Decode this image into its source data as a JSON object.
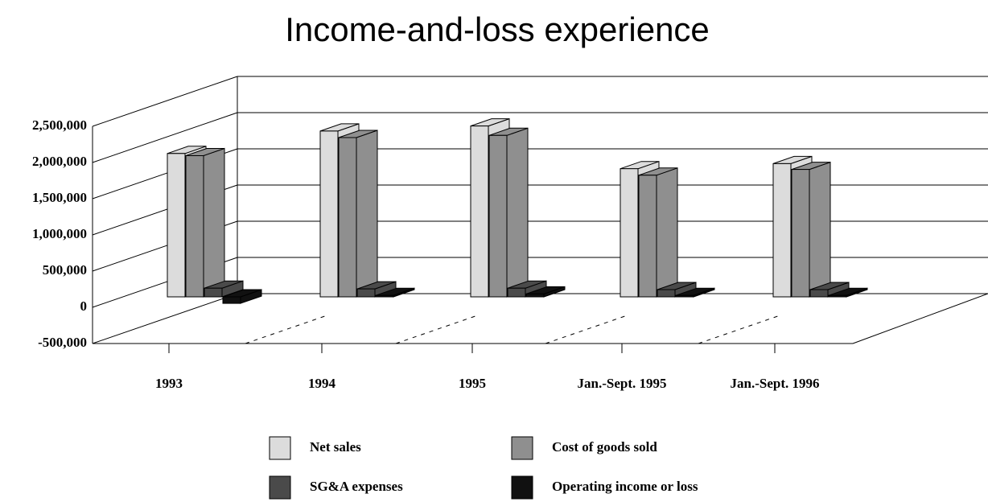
{
  "chart_data": {
    "type": "bar3d",
    "title": "Income-and-loss experience",
    "categories": [
      "1993",
      "1994",
      "1995",
      "Jan.-Sept. 1995",
      "Jan.-Sept. 1996"
    ],
    "series": [
      {
        "name": "Net sales",
        "color": "#dcdcdc",
        "values": [
          1980000,
          2290000,
          2360000,
          1770000,
          1840000
        ]
      },
      {
        "name": "Cost of goods sold",
        "color": "#8f8f8f",
        "values": [
          1950000,
          2200000,
          2230000,
          1680000,
          1760000
        ]
      },
      {
        "name": "SG&A expenses",
        "color": "#4a4a4a",
        "values": [
          120000,
          110000,
          120000,
          100000,
          100000
        ]
      },
      {
        "name": "Operating income or loss",
        "color": "#111111",
        "values": [
          -90000,
          20000,
          40000,
          20000,
          20000
        ]
      }
    ],
    "ylim": [
      -500000,
      2500000
    ],
    "yticks": [
      {
        "value": -500000,
        "label": "-500,000"
      },
      0,
      {
        "value": 500000,
        "label": "500,000"
      },
      {
        "value": 1000000,
        "label": "1,000,000"
      },
      {
        "value": 1500000,
        "label": "1,500,000"
      },
      {
        "value": 2000000,
        "label": "2,000,000"
      },
      {
        "value": 2500000,
        "label": "2,500,000"
      }
    ],
    "grid": true
  }
}
